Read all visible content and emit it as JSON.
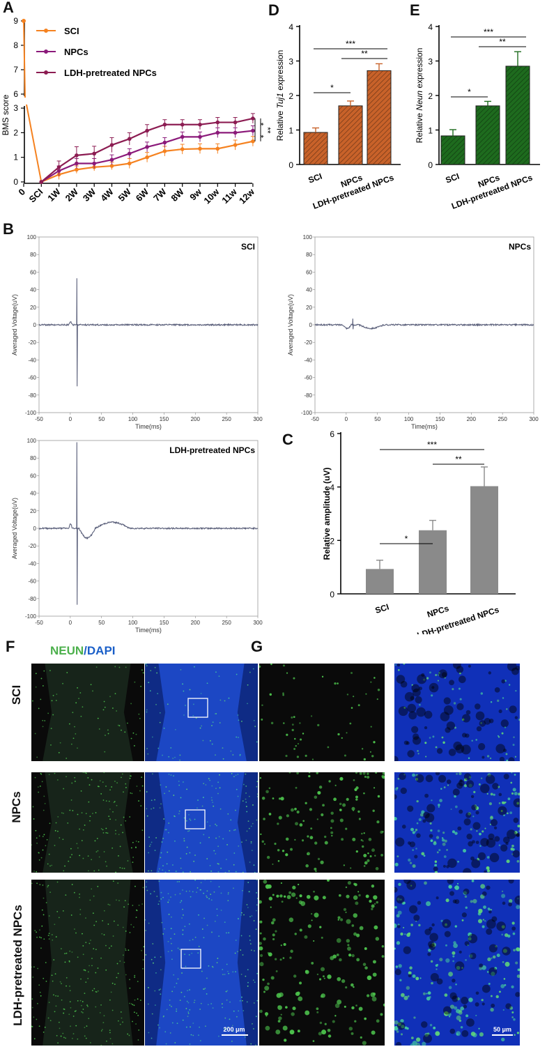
{
  "panel_labels": {
    "A": "A",
    "B": "B",
    "C": "C",
    "D": "D",
    "E": "E",
    "F": "F",
    "G": "G"
  },
  "colors": {
    "sci": "#f58220",
    "npcs": "#8b1a7a",
    "ldh": "#8c1c52",
    "orange_bar": "#c8622a",
    "green_bar": "#1e6b1e",
    "gray_bar": "#8a8a8a",
    "trace": "#5a5f7a",
    "neun": "#4cb04c",
    "dapi": "#1a5fc8"
  },
  "chart_data": [
    {
      "type": "line",
      "panel": "A",
      "ylabel": "BMS score",
      "categories": [
        "0",
        "SCI",
        "1W",
        "2W",
        "3W",
        "4W",
        "5W",
        "6W",
        "7W",
        "8W",
        "9w",
        "10w",
        "11w",
        "12w"
      ],
      "yticks_upper": [
        "6",
        "7",
        "8",
        "9"
      ],
      "yticks_lower": [
        "0",
        "1",
        "2",
        "3"
      ],
      "series": [
        {
          "name": "SCI",
          "values": [
            9,
            0,
            0.3,
            0.5,
            0.6,
            0.65,
            0.75,
            1.0,
            1.25,
            1.33,
            1.35,
            1.35,
            1.5,
            1.65
          ],
          "errors": [
            0,
            0,
            0.2,
            0.15,
            0.15,
            0.15,
            0.2,
            0.2,
            0.2,
            0.2,
            0.2,
            0.2,
            0.2,
            0.2
          ]
        },
        {
          "name": "NPCs",
          "values": [
            9,
            0,
            0.45,
            0.75,
            0.75,
            0.9,
            1.15,
            1.42,
            1.6,
            1.83,
            1.83,
            2.0,
            2.0,
            2.08
          ],
          "errors": [
            0,
            0,
            0.2,
            0.2,
            0.2,
            0.2,
            0.2,
            0.2,
            0.2,
            0.2,
            0.2,
            0.2,
            0.2,
            0.2
          ]
        },
        {
          "name": "LDH-pretreated NPCs",
          "values": [
            9,
            0,
            0.6,
            1.08,
            1.15,
            1.5,
            1.75,
            2.08,
            2.33,
            2.33,
            2.33,
            2.42,
            2.42,
            2.58
          ],
          "errors": [
            0,
            0,
            0.25,
            0.35,
            0.3,
            0.3,
            0.25,
            0.25,
            0.2,
            0.2,
            0.2,
            0.2,
            0.2,
            0.2
          ]
        }
      ],
      "significance": [
        "*",
        "*",
        "**"
      ]
    },
    {
      "type": "bar",
      "panel": "D",
      "ylabel_prefix": "Relative ",
      "ylabel_gene": "Tuj1",
      "ylabel_suffix": " expression",
      "categories": [
        "SCI",
        "NPCs",
        "LDH-pretreated NPCs"
      ],
      "values": [
        0.93,
        1.7,
        2.72
      ],
      "errors": [
        0.13,
        0.14,
        0.2
      ],
      "ylim": [
        0,
        4
      ],
      "yticks": [
        "0",
        "1",
        "2",
        "3",
        "4"
      ],
      "significance": [
        {
          "from": 0,
          "to": 1,
          "label": "*"
        },
        {
          "from": 1,
          "to": 2,
          "label": "**"
        },
        {
          "from": 0,
          "to": 2,
          "label": "***"
        }
      ]
    },
    {
      "type": "bar",
      "panel": "E",
      "ylabel_prefix": "Relative ",
      "ylabel_gene": "Neun",
      "ylabel_suffix": " expression",
      "categories": [
        "SCI",
        "NPCs",
        "LDH-pretreated NPCs"
      ],
      "values": [
        0.83,
        1.7,
        2.85
      ],
      "errors": [
        0.18,
        0.13,
        0.42
      ],
      "ylim": [
        0,
        4
      ],
      "yticks": [
        "0",
        "1",
        "2",
        "3",
        "4"
      ],
      "significance": [
        {
          "from": 0,
          "to": 1,
          "label": "*"
        },
        {
          "from": 1,
          "to": 2,
          "label": "**"
        },
        {
          "from": 0,
          "to": 2,
          "label": "***"
        }
      ]
    },
    {
      "type": "bar",
      "panel": "C",
      "ylabel": "Relative amplitude (uV)",
      "categories": [
        "SCI",
        "NPCs",
        "LDH-pretreated NPCs"
      ],
      "values": [
        0.93,
        2.38,
        4.03
      ],
      "errors": [
        0.33,
        0.37,
        0.72
      ],
      "ylim": [
        0,
        6
      ],
      "yticks": [
        "0",
        "2",
        "4",
        "6"
      ],
      "significance": [
        {
          "from": 0,
          "to": 1,
          "label": "*"
        },
        {
          "from": 1,
          "to": 2,
          "label": "**"
        },
        {
          "from": 0,
          "to": 2,
          "label": "***"
        }
      ]
    },
    {
      "type": "line",
      "panel": "B",
      "ylabel": "Averaged Voltage(uV)",
      "xlabel": "Time(ms)",
      "xticks": [
        "-50",
        "0",
        "50",
        "100",
        "150",
        "200",
        "250",
        "300"
      ],
      "yticks": [
        "100",
        "80",
        "60",
        "40",
        "20",
        "0",
        "-20",
        "-40",
        "-60",
        "-80",
        "-100"
      ],
      "xlim": [
        -50,
        300
      ],
      "ylim": [
        -100,
        100
      ],
      "traces": [
        {
          "name": "SCI",
          "spike_max": 53,
          "spike_min": -70,
          "wave_amp": 0
        },
        {
          "name": "NPCs",
          "spike_max": 7,
          "spike_min": -5,
          "wave_amp": -4
        },
        {
          "name": "LDH-pretreated NPCs",
          "spike_max": 98,
          "spike_min": -87,
          "wave_amp": 7
        }
      ]
    }
  ],
  "panel_f": {
    "legend_neun": "NEUN",
    "legend_sep": "/",
    "legend_dapi": "DAPI",
    "rows": [
      "SCI",
      "NPCs",
      "LDH-pretreated NPCs"
    ],
    "scale_left": "200 μm",
    "scale_right": "50 μm"
  }
}
